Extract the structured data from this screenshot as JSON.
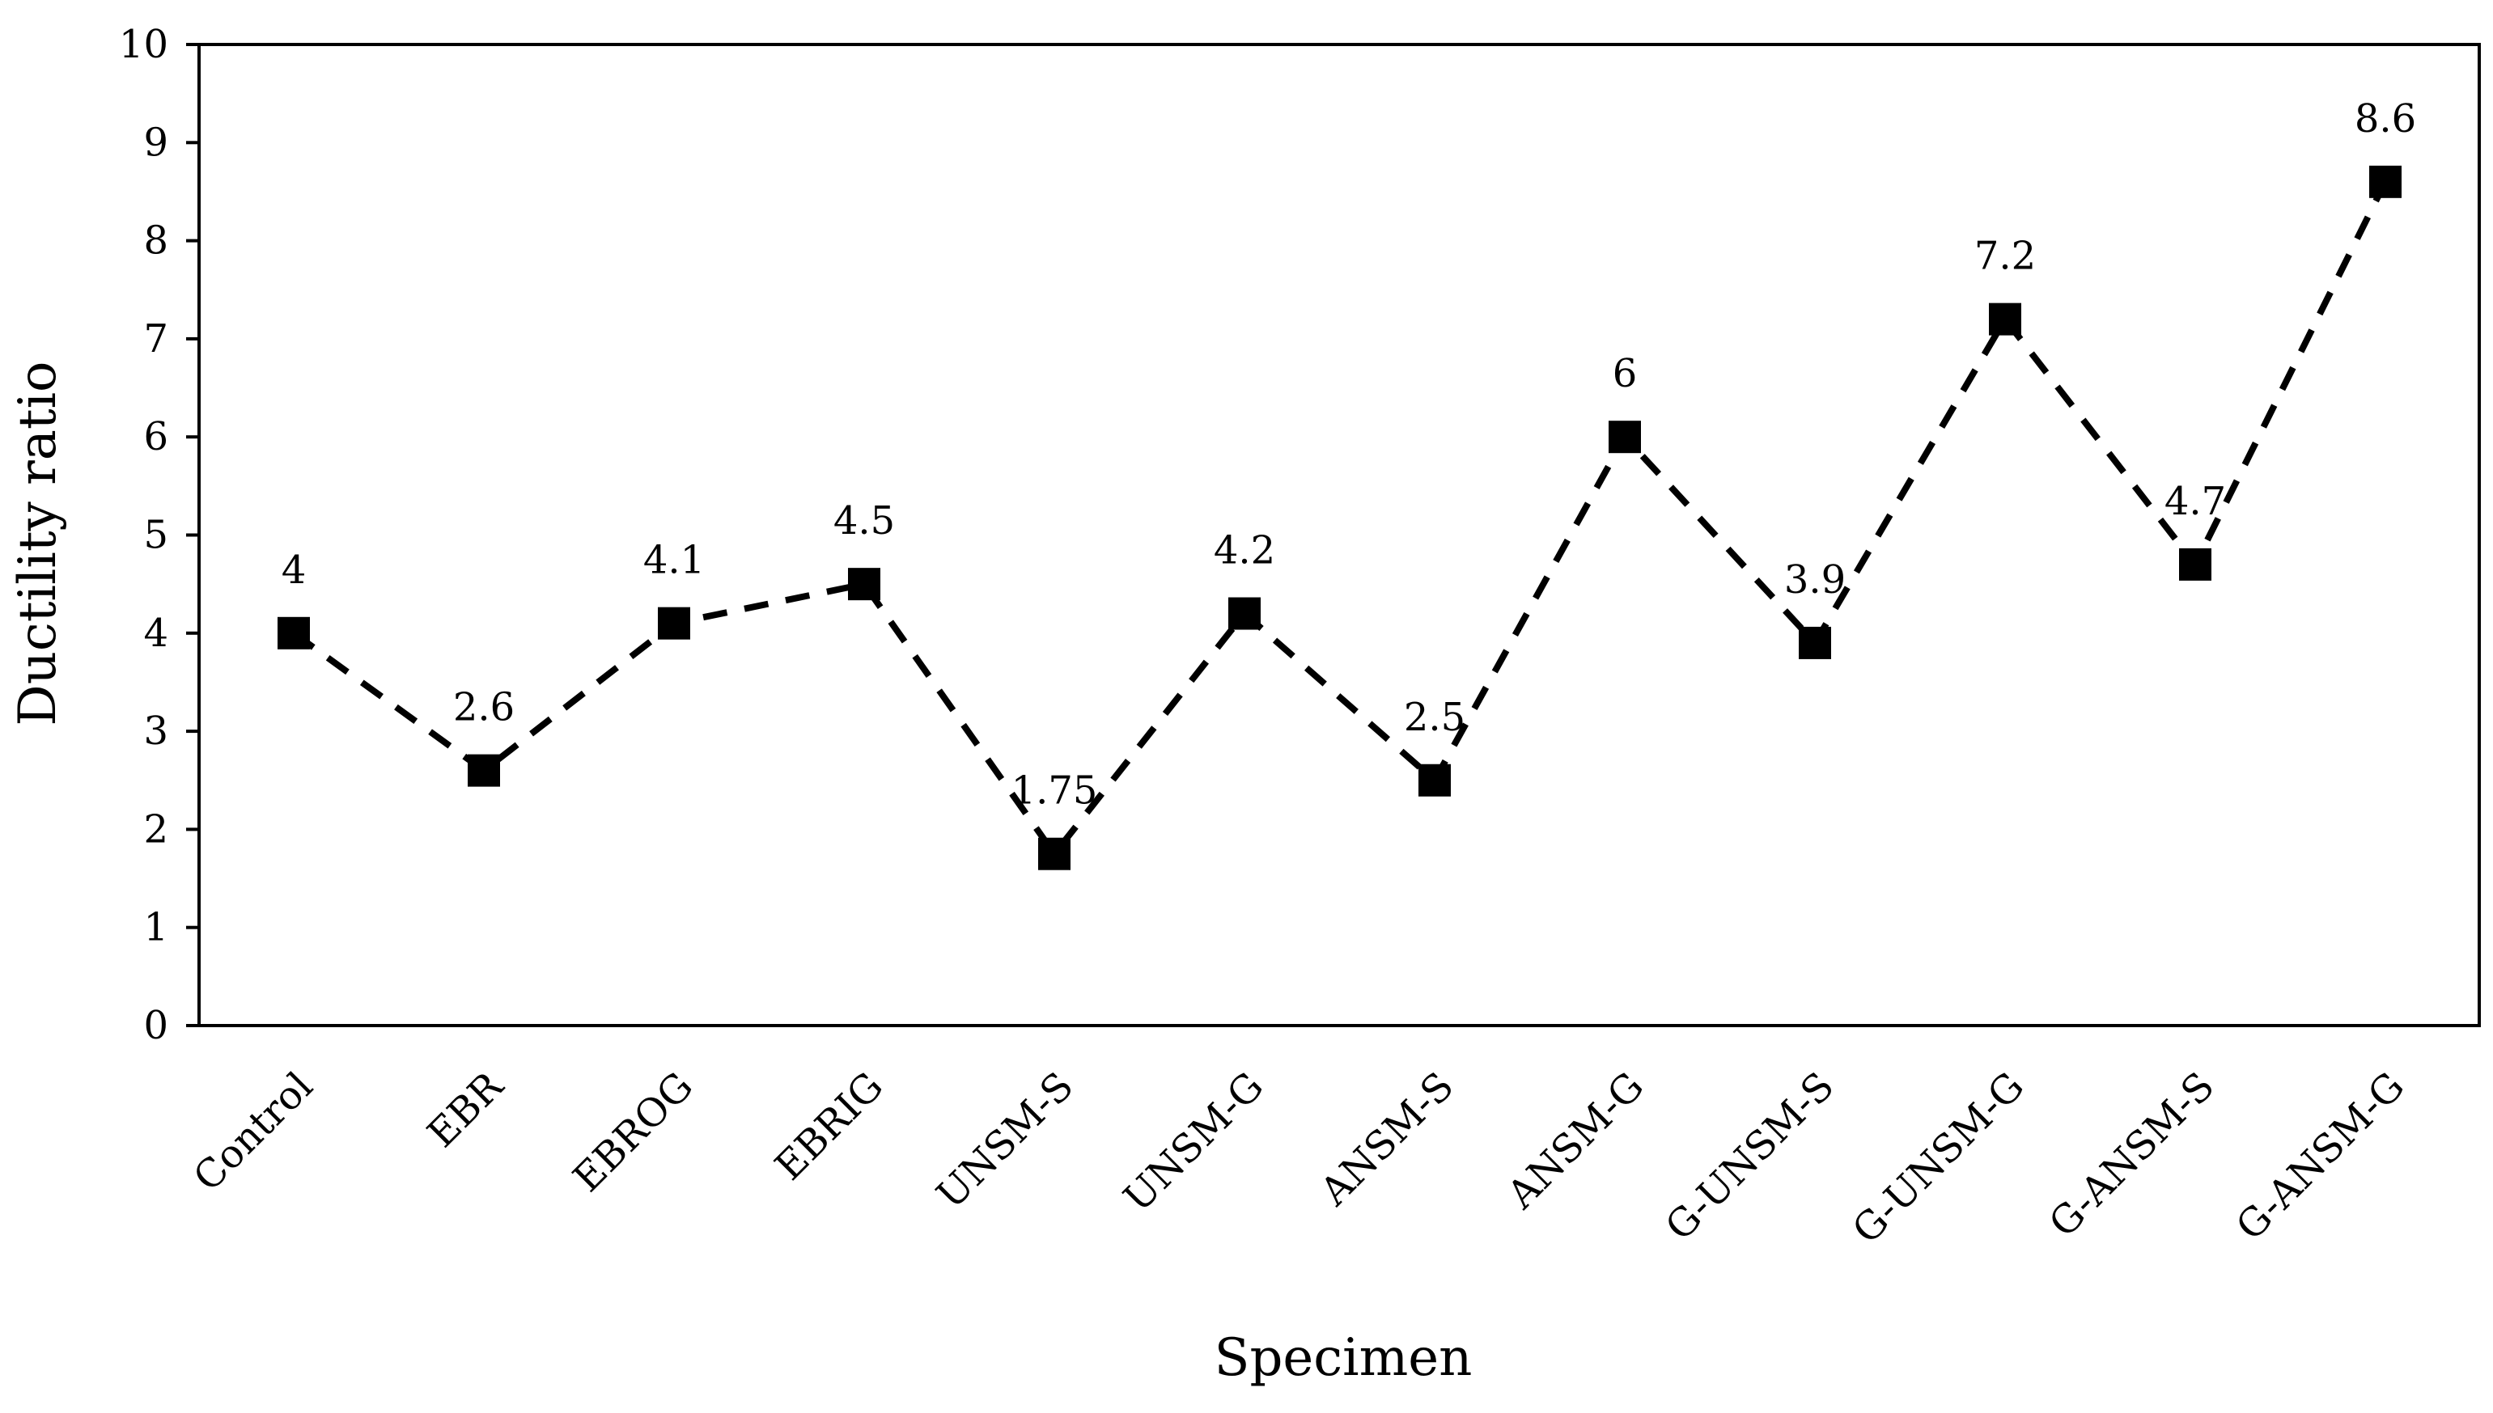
{
  "chart_data": {
    "type": "line",
    "title": "",
    "xlabel": "Specimen",
    "ylabel": "Ductility ratio",
    "ylim": [
      0,
      10
    ],
    "yticks": [
      "0",
      "1",
      "2",
      "3",
      "4",
      "5",
      "6",
      "7",
      "8",
      "9",
      "10"
    ],
    "grid": false,
    "line_style": "dashed",
    "marker": "square",
    "color": "#000000",
    "categories": [
      "Control",
      "EBR",
      "EBROG",
      "EBRIG",
      "UNSM-S",
      "UNSM-G",
      "ANSM-S",
      "ANSM-G",
      "G-UNSM-S",
      "G-UNSM-G",
      "G-ANSM-S",
      "G-ANSM-G"
    ],
    "values": [
      4,
      2.6,
      4.1,
      4.5,
      1.75,
      4.2,
      2.5,
      6,
      3.9,
      7.2,
      4.7,
      8.6
    ],
    "data_labels": [
      "4",
      "2.6",
      "4.1",
      "4.5",
      "1.75",
      "4.2",
      "2.5",
      "6",
      "3.9",
      "7.2",
      "4.7",
      "8.6"
    ]
  }
}
